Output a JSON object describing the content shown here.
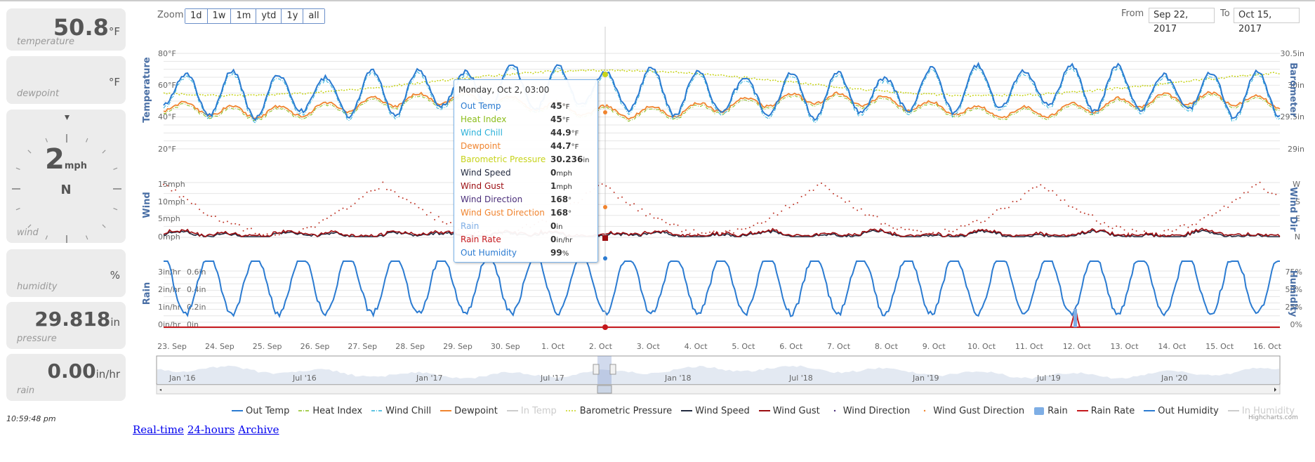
{
  "widgets": {
    "temperature": {
      "value": "50.8",
      "unit": "°F",
      "label": "temperature"
    },
    "dewpoint": {
      "value": "",
      "unit": "°F",
      "label": "dewpoint"
    },
    "wind": {
      "speed": "2",
      "unit": "mph",
      "direction": "N",
      "label": "wind"
    },
    "humidity": {
      "value": "",
      "unit": "%",
      "label": "humidity"
    },
    "pressure": {
      "value": "29.818",
      "unit": "in",
      "label": "pressure"
    },
    "rain": {
      "value": "0.00",
      "unit": "in/hr",
      "label": "rain"
    }
  },
  "clock": "10:59:48 pm",
  "links": [
    "Real-time",
    "24-hours",
    "Archive"
  ],
  "zoom": {
    "label": "Zoom",
    "buttons": [
      "1d",
      "1w",
      "1m",
      "ytd",
      "1y",
      "all"
    ]
  },
  "range": {
    "from_label": "From",
    "from": "Sep 22, 2017",
    "to_label": "To",
    "to": "Oct 15, 2017"
  },
  "axes": {
    "temperature": {
      "title": "Temperature",
      "ticks": [
        "80°F",
        "60°F",
        "40°F",
        "20°F"
      ]
    },
    "barometer": {
      "title": "Barometer",
      "ticks": [
        "30.5in",
        "30in",
        "29.5in",
        "29in"
      ]
    },
    "wind": {
      "title": "Wind",
      "ticks": [
        "15mph",
        "10mph",
        "5mph",
        "0mph"
      ]
    },
    "wind_dir": {
      "title": "Wind Dir",
      "ticks": [
        "W",
        "S",
        "E",
        "N"
      ]
    },
    "rain": {
      "title": "Rain",
      "ticks_rate": [
        "3in/hr",
        "2in/hr",
        "1in/hr",
        "0in/hr"
      ],
      "ticks_amount": [
        "0.6in",
        "0.4in",
        "0.2in",
        "0in"
      ]
    },
    "humidity": {
      "title": "Humidity",
      "ticks": [
        "75%",
        "50%",
        "25%",
        "0%"
      ]
    },
    "x_ticks": [
      "23. Sep",
      "24. Sep",
      "25. Sep",
      "26. Sep",
      "27. Sep",
      "28. Sep",
      "29. Sep",
      "30. Sep",
      "1. Oct",
      "2. Oct",
      "3. Oct",
      "4. Oct",
      "5. Oct",
      "6. Oct",
      "7. Oct",
      "8. Oct",
      "9. Oct",
      "10. Oct",
      "11. Oct",
      "12. Oct",
      "13. Oct",
      "14. Oct",
      "15. Oct",
      "16. Oct"
    ]
  },
  "navigator": {
    "labels": [
      "Jan '16",
      "Jul '16",
      "Jan '17",
      "Jul '17",
      "Jan '18",
      "Jul '18",
      "Jan '19",
      "Jul '19",
      "Jan '20"
    ]
  },
  "tooltip": {
    "header": "Monday, Oct 2, 03:00",
    "rows": [
      {
        "name": "Out Temp",
        "value": "45",
        "unit": "°F",
        "color": "#2b7bd1"
      },
      {
        "name": "Heat Index",
        "value": "45",
        "unit": "°F",
        "color": "#8bbd1a"
      },
      {
        "name": "Wind Chill",
        "value": "44.9",
        "unit": "°F",
        "color": "#2ab0d8"
      },
      {
        "name": "Dewpoint",
        "value": "44.7",
        "unit": "°F",
        "color": "#f0842f"
      },
      {
        "name": "Barometric Pressure",
        "value": "30.236",
        "unit": "in",
        "color": "#c7d31a"
      },
      {
        "name": "Wind Speed",
        "value": "0",
        "unit": "mph",
        "color": "#222a3f"
      },
      {
        "name": "Wind Gust",
        "value": "1",
        "unit": "mph",
        "color": "#9b0c10"
      },
      {
        "name": "Wind Direction",
        "value": "168",
        "unit": "°",
        "color": "#4a2e7a"
      },
      {
        "name": "Wind Gust Direction",
        "value": "168",
        "unit": "°",
        "color": "#f0842f"
      },
      {
        "name": "Rain",
        "value": "0",
        "unit": "in",
        "color": "#7eaee5"
      },
      {
        "name": "Rain Rate",
        "value": "0",
        "unit": "in/hr",
        "color": "#c4171c"
      },
      {
        "name": "Out Humidity",
        "value": "99",
        "unit": "%",
        "color": "#2b7bd1"
      }
    ]
  },
  "legend": [
    {
      "name": "Out Temp",
      "color": "#2b7bd1",
      "style": "line",
      "on": true
    },
    {
      "name": "Heat Index",
      "color": "#8bbd1a",
      "style": "dashdot",
      "on": true
    },
    {
      "name": "Wind Chill",
      "color": "#2ab0d8",
      "style": "dashdot",
      "on": true
    },
    {
      "name": "Dewpoint",
      "color": "#f0842f",
      "style": "line",
      "on": true
    },
    {
      "name": "In Temp",
      "color": "#cccccc",
      "style": "line",
      "on": false
    },
    {
      "name": "Barometric Pressure",
      "color": "#c7d31a",
      "style": "dot",
      "on": true
    },
    {
      "name": "Wind Speed",
      "color": "#222a3f",
      "style": "line",
      "on": true
    },
    {
      "name": "Wind Gust",
      "color": "#9b0c10",
      "style": "line",
      "on": true
    },
    {
      "name": "Wind Direction",
      "color": "#4a2e7a",
      "style": "point",
      "on": true
    },
    {
      "name": "Wind Gust Direction",
      "color": "#f0842f",
      "style": "point",
      "on": true
    },
    {
      "name": "Rain",
      "color": "#7eaee5",
      "style": "box",
      "on": true
    },
    {
      "name": "Rain Rate",
      "color": "#c4171c",
      "style": "line",
      "on": true
    },
    {
      "name": "Out Humidity",
      "color": "#2b7bd1",
      "style": "line",
      "on": true
    },
    {
      "name": "In Humidity",
      "color": "#cccccc",
      "style": "line",
      "on": false
    }
  ],
  "credits": "Highcharts.com"
}
